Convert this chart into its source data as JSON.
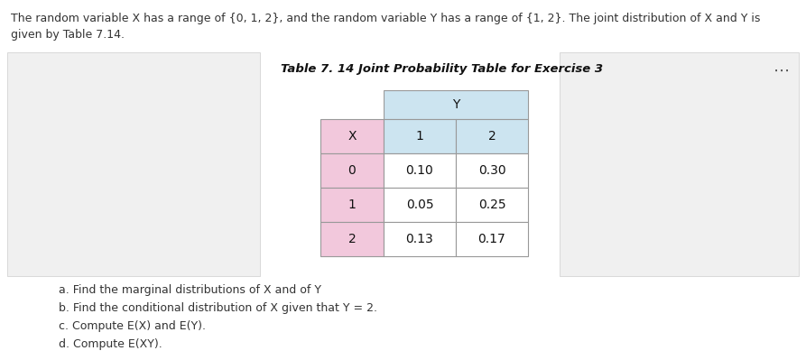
{
  "intro_line1": "The random variable X has a range of {0, 1, 2}, and the random variable Y has a range of {1, 2}. The joint distribution of X and Y is",
  "intro_line2": "given by Table 7.14.",
  "title": "Table 7. 14 Joint Probability Table for Exercise 3",
  "col_header_label": "Y",
  "row_header_label": "X",
  "col_values": [
    "1",
    "2"
  ],
  "row_values": [
    "0",
    "1",
    "2"
  ],
  "data": [
    [
      "0.10",
      "0.30"
    ],
    [
      "0.05",
      "0.25"
    ],
    [
      "0.13",
      "0.17"
    ]
  ],
  "questions": [
    "a. Find the marginal distributions of X and of Y",
    "b. Find the conditional distribution of X given that Y = 2.",
    "c. Compute E(X) and E(Y).",
    "d. Compute E(XY)."
  ],
  "main_bg": "#ffffff",
  "left_panel_bg": "#f0f0f0",
  "right_panel_bg": "#f0f0f0",
  "header_col_bg": "#cce4f0",
  "header_row_bg": "#f2c8dc",
  "cell_bg": "#ffffff",
  "border_color": "#999999",
  "dots_color": "#555555",
  "title_fontsize": 9.5,
  "intro_fontsize": 9.0,
  "table_fontsize": 10,
  "question_fontsize": 9.0,
  "fig_width": 8.93,
  "fig_height": 3.99,
  "dpi": 100
}
